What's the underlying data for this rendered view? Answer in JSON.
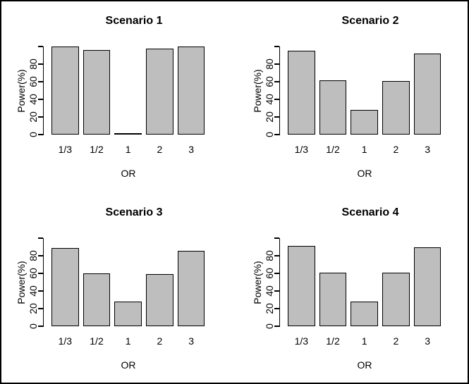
{
  "figure": {
    "background": "#ffffff",
    "frame_color": "#000000"
  },
  "style": {
    "bar_fill": "#bebebe",
    "bar_border": "#000000",
    "axis_color": "#000000",
    "text_color": "#000000"
  },
  "chart_data": [
    {
      "type": "bar",
      "title": "Scenario 1",
      "xlabel": "OR",
      "ylabel": "Power(%)",
      "categories": [
        "1/3",
        "1/2",
        "1",
        "2",
        "3"
      ],
      "values": [
        100,
        96,
        1,
        98,
        100
      ],
      "ylim": [
        0,
        100
      ],
      "yticks_labeled": [
        0,
        20,
        40,
        60,
        80
      ],
      "yticks_unlabeled": [
        100
      ],
      "grid": false,
      "legend": false
    },
    {
      "type": "bar",
      "title": "Scenario 2",
      "xlabel": "OR",
      "ylabel": "Power(%)",
      "categories": [
        "1/3",
        "1/2",
        "1",
        "2",
        "3"
      ],
      "values": [
        95,
        62,
        28,
        61,
        92
      ],
      "ylim": [
        0,
        100
      ],
      "yticks_labeled": [
        0,
        20,
        40,
        60,
        80
      ],
      "yticks_unlabeled": [
        100
      ],
      "grid": false,
      "legend": false
    },
    {
      "type": "bar",
      "title": "Scenario 3",
      "xlabel": "OR",
      "ylabel": "Power(%)",
      "categories": [
        "1/3",
        "1/2",
        "1",
        "2",
        "3"
      ],
      "values": [
        89,
        60,
        28,
        59,
        86
      ],
      "ylim": [
        0,
        100
      ],
      "yticks_labeled": [
        0,
        20,
        40,
        60,
        80
      ],
      "yticks_unlabeled": [
        100
      ],
      "grid": false,
      "legend": false
    },
    {
      "type": "bar",
      "title": "Scenario 4",
      "xlabel": "OR",
      "ylabel": "Power(%)",
      "categories": [
        "1/3",
        "1/2",
        "1",
        "2",
        "3"
      ],
      "values": [
        91,
        61,
        28,
        61,
        90
      ],
      "ylim": [
        0,
        100
      ],
      "yticks_labeled": [
        0,
        20,
        40,
        60,
        80
      ],
      "yticks_unlabeled": [
        100
      ],
      "grid": false,
      "legend": false
    }
  ]
}
